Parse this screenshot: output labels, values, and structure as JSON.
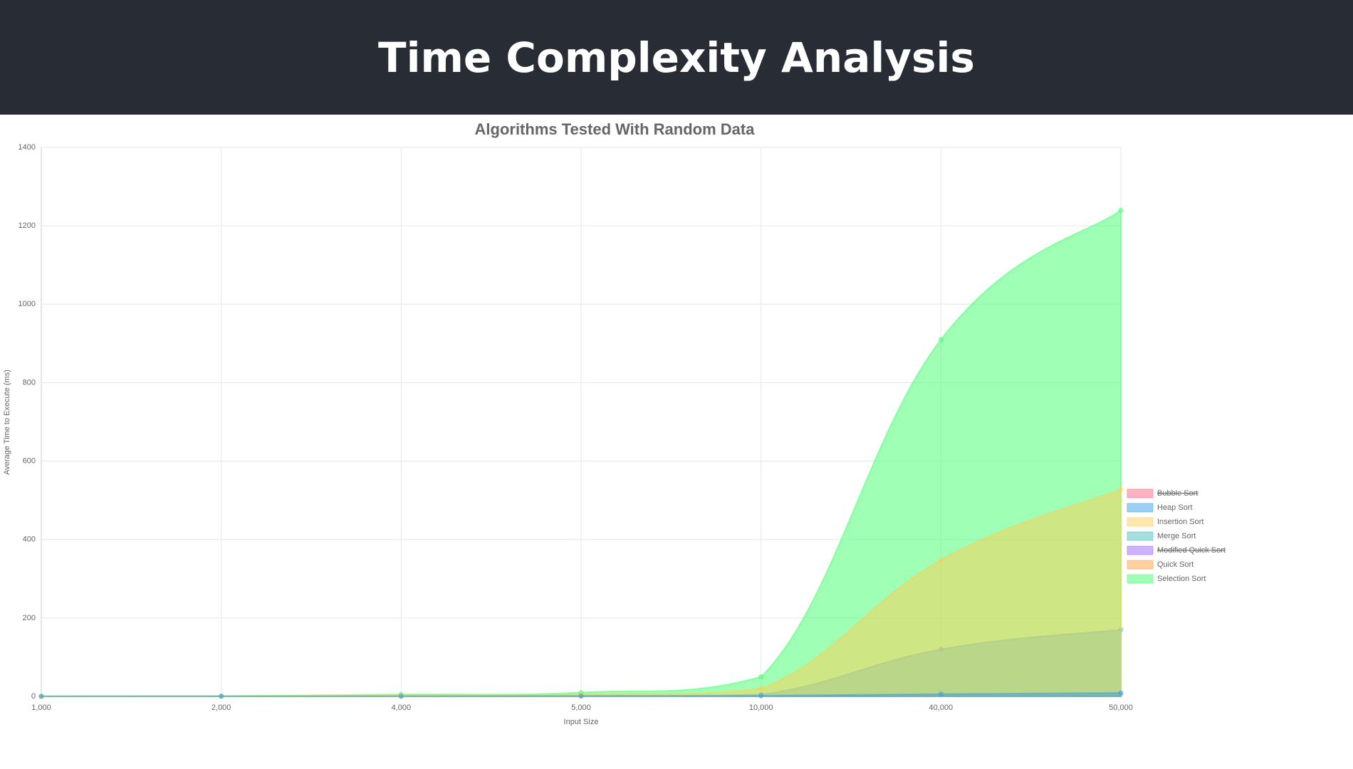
{
  "header": {
    "title": "Time Complexity Analysis"
  },
  "chart_data": {
    "type": "area",
    "title": "Algorithms Tested With Random Data",
    "x_label": "Input Size",
    "y_label": "Average Time to Execute (ms)",
    "categories": [
      "1,000",
      "2,000",
      "4,000",
      "5,000",
      "10,000",
      "40,000",
      "50,000"
    ],
    "ylim": [
      0,
      1400
    ],
    "yticks": [
      0,
      200,
      400,
      600,
      800,
      1000,
      1200,
      1400
    ],
    "grid": true,
    "legend": "right",
    "series": [
      {
        "name": "Bubble Sort",
        "color": "rgba(255,99,132,0.5)",
        "hidden": true
      },
      {
        "name": "Heap Sort",
        "color": "rgba(54,162,235,0.5)",
        "values": [
          0.1,
          0.2,
          0.5,
          1,
          2,
          6,
          9
        ]
      },
      {
        "name": "Insertion Sort",
        "color": "rgba(255,206,86,0.5)",
        "values": [
          0.3,
          0.5,
          3,
          5,
          20,
          348,
          528
        ]
      },
      {
        "name": "Merge Sort",
        "color": "rgba(75,192,192,0.5)",
        "values": [
          0.2,
          0.3,
          1,
          2,
          5,
          120,
          170
        ]
      },
      {
        "name": "Modified Quick Sort",
        "color": "rgba(153,102,255,0.5)",
        "hidden": true
      },
      {
        "name": "Quick Sort",
        "color": "rgba(255,159,64,0.5)",
        "values": [
          0.1,
          0.2,
          0.4,
          0.5,
          1,
          4,
          5
        ]
      },
      {
        "name": "Selection Sort",
        "color": "rgba(80,255,120,0.55)",
        "values": [
          0.5,
          1,
          5,
          10,
          50,
          910,
          1240
        ]
      }
    ]
  }
}
